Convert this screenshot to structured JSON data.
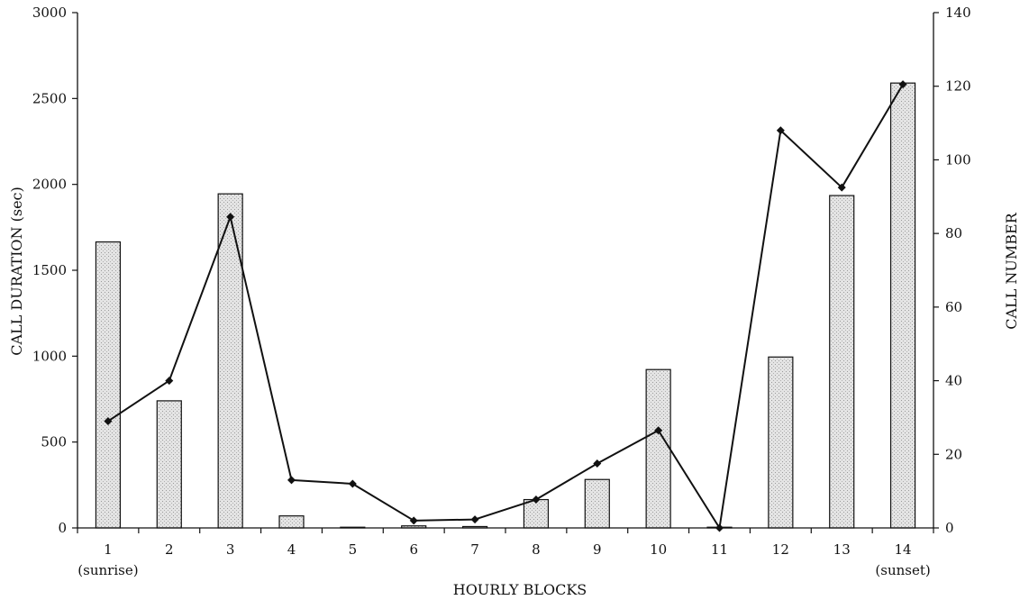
{
  "chart_data": {
    "type": "bar",
    "categories": [
      "1",
      "2",
      "3",
      "4",
      "5",
      "6",
      "7",
      "8",
      "9",
      "10",
      "11",
      "12",
      "13",
      "14"
    ],
    "category_notes": {
      "0": "(sunrise)",
      "13": "(sunset)"
    },
    "series": [
      {
        "type": "bar",
        "axis": "left",
        "values": [
          1665,
          740,
          1945,
          70,
          2,
          12,
          8,
          165,
          282,
          922,
          0,
          995,
          1935,
          2590
        ]
      },
      {
        "type": "line",
        "axis": "right",
        "values": [
          29,
          40,
          84.5,
          13,
          12,
          2,
          2.3,
          7.7,
          17.5,
          26.5,
          0,
          108,
          92.5,
          120.5
        ]
      }
    ],
    "xlabel": "HOURLY BLOCKS",
    "ylabel": "CALL DURATION (sec)",
    "y2label": "CALL NUMBER",
    "ylim": [
      0,
      3000
    ],
    "y2lim": [
      0,
      140
    ],
    "yticks": [
      0,
      500,
      1000,
      1500,
      2000,
      2500,
      3000
    ],
    "y2ticks": [
      0,
      20,
      40,
      60,
      80,
      100,
      120,
      140
    ],
    "grid": false,
    "legend": "none",
    "colors": {
      "bar_fill": "#dcdcdc",
      "bar_stroke": "#111111",
      "line": "#111111",
      "axis": "#111111"
    }
  }
}
